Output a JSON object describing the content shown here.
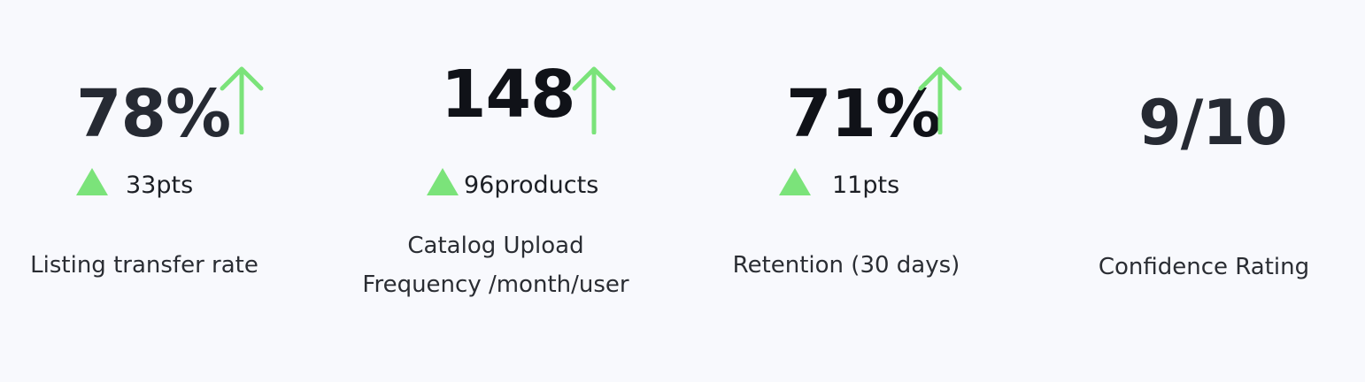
{
  "colors": {
    "background": "#f8f9fd",
    "positive": "#7be37a",
    "text": "#22252c"
  },
  "metrics": [
    {
      "value": "78%",
      "trend_icon": "arrow-up-icon",
      "delta_icon": "triangle-up-icon",
      "delta": "33pts",
      "label": "Listing transfer rate"
    },
    {
      "value": "148",
      "trend_icon": "arrow-up-icon",
      "delta_icon": "triangle-up-icon",
      "delta": "96products",
      "label_lines": [
        "Catalog Upload",
        "Frequency /month/user"
      ]
    },
    {
      "value": "71%",
      "trend_icon": "arrow-up-icon",
      "delta_icon": "triangle-up-icon",
      "delta": "11pts",
      "label": "Retention (30 days)"
    },
    {
      "value": "9/10",
      "label": "Confidence Rating"
    }
  ]
}
